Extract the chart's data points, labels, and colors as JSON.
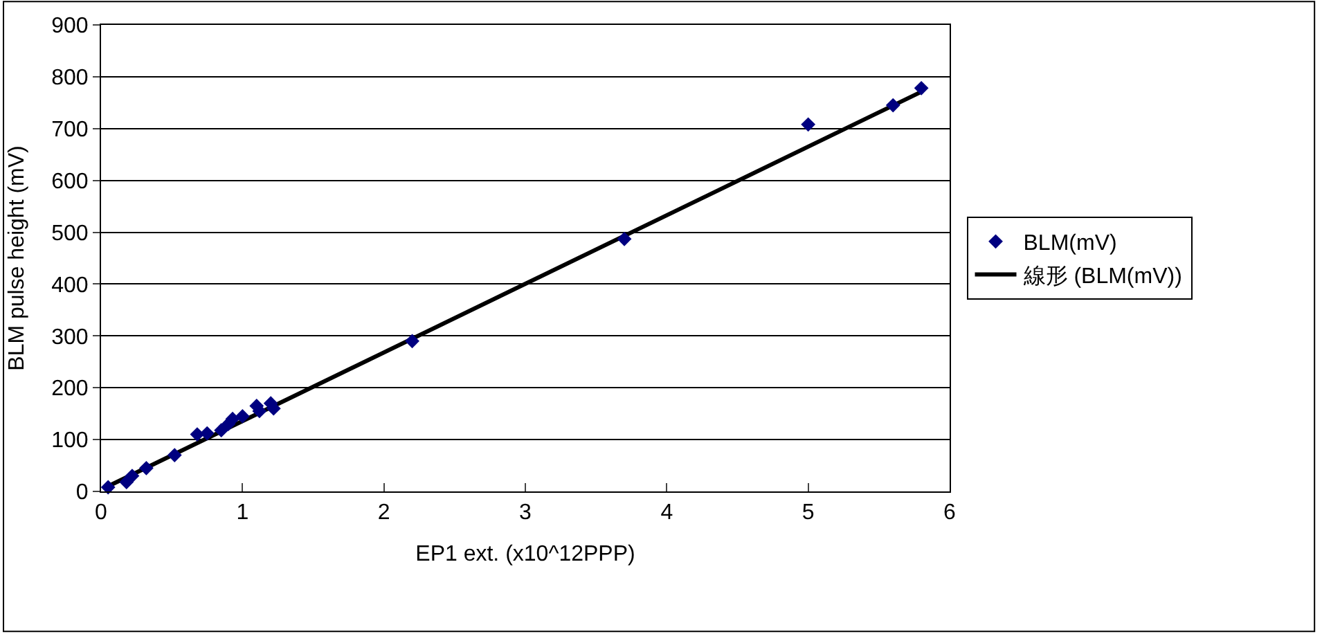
{
  "chart_data": {
    "type": "scatter",
    "xlabel": "EP1 ext. (x10^12PPP)",
    "ylabel": "BLM pulse height (mV)",
    "xlim": [
      0,
      6
    ],
    "xticks": [
      0,
      1,
      2,
      3,
      4,
      5,
      6
    ],
    "ylim": [
      0,
      900
    ],
    "yticks": [
      0,
      100,
      200,
      300,
      400,
      500,
      600,
      700,
      800,
      900
    ],
    "grid": "y",
    "legend": "right",
    "series": [
      {
        "name": "BLM(mV)",
        "color": "#000080",
        "marker": "diamond",
        "x": [
          0.05,
          0.18,
          0.22,
          0.32,
          0.52,
          0.68,
          0.75,
          0.85,
          0.9,
          0.93,
          1.0,
          1.1,
          1.12,
          1.2,
          1.22,
          2.2,
          3.7,
          5.0,
          5.6,
          5.8
        ],
        "values": [
          8,
          18,
          30,
          45,
          70,
          110,
          112,
          118,
          130,
          140,
          145,
          165,
          155,
          170,
          160,
          290,
          487,
          708,
          745,
          778
        ]
      },
      {
        "name": "線形 (BLM(mV))",
        "color": "#000000",
        "type": "line",
        "marker": "none",
        "line_style": "solid",
        "x": [
          0.05,
          5.8
        ],
        "values": [
          10,
          771
        ]
      }
    ]
  }
}
